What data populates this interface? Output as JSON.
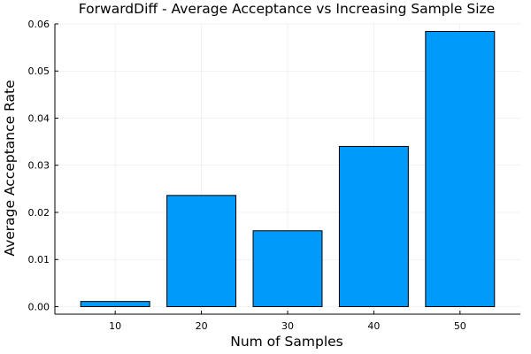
{
  "chart_data": {
    "type": "bar",
    "title": "ForwardDiff - Average Acceptance vs Increasing Sample Size",
    "xlabel": "Num of Samples",
    "ylabel": "Average Acceptance Rate",
    "categories": [
      "10",
      "20",
      "30",
      "40",
      "50"
    ],
    "x": [
      10,
      20,
      30,
      40,
      50
    ],
    "values": [
      0.0011,
      0.0236,
      0.0161,
      0.034,
      0.0584
    ],
    "xlim": [
      3,
      57
    ],
    "ylim": [
      -0.0016,
      0.06
    ],
    "yticks": [
      0.0,
      0.01,
      0.02,
      0.03,
      0.04,
      0.05,
      0.06
    ],
    "ytick_labels": [
      "0.00",
      "0.01",
      "0.02",
      "0.03",
      "0.04",
      "0.05",
      "0.06"
    ],
    "xticks": [
      10,
      20,
      30,
      40,
      50
    ],
    "xtick_labels": [
      "10",
      "20",
      "30",
      "40",
      "50"
    ],
    "bar_width": 8,
    "bar_color": "#009AFA",
    "bar_edge_color": "#000000",
    "grid": true,
    "legend": "none"
  }
}
